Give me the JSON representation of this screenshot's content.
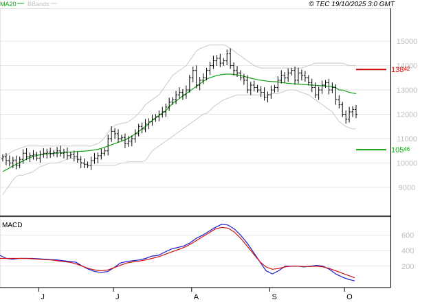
{
  "header": {
    "legend_ma20": "MA20",
    "legend_bbands": "BBands",
    "copyright": "© TEC 19/10/2025 3:0 GMT"
  },
  "colors": {
    "ma20": "#10a010",
    "bbands": "#c8c8c8",
    "price": "#000000",
    "resistance": "#d00000",
    "support": "#10a010",
    "macd": "#1a1ad0",
    "signal": "#d01010",
    "grid": "#e4e4e4",
    "axis_text": "#bdbdbd"
  },
  "chart_data": [
    {
      "type": "ohlc",
      "panel": "price",
      "ylim": [
        7900,
        16300
      ],
      "y_ticks": [
        9000,
        10000,
        11000,
        12000,
        13000,
        14000,
        15000
      ],
      "y_tick_labels": [
        "9000",
        "10000",
        "11000",
        "12000",
        "13000",
        "14000",
        "15000"
      ],
      "x_month_labels": [
        {
          "index": 11,
          "label": "J"
        },
        {
          "index": 33,
          "label": "J"
        },
        {
          "index": 56,
          "label": "A"
        },
        {
          "index": 79,
          "label": "S"
        },
        {
          "index": 101,
          "label": "O"
        }
      ],
      "close": [
        10250,
        10100,
        10000,
        10120,
        9900,
        10150,
        10400,
        10250,
        10300,
        10350,
        10200,
        10350,
        10400,
        10450,
        10380,
        10420,
        10500,
        10400,
        10450,
        10300,
        10350,
        10250,
        10150,
        10000,
        9950,
        9900,
        10100,
        10200,
        10300,
        10400,
        10500,
        11000,
        11300,
        11200,
        11000,
        11050,
        10800,
        10900,
        11000,
        11200,
        11500,
        11400,
        11600,
        11700,
        11800,
        11900,
        12000,
        12100,
        12300,
        12500,
        12600,
        12800,
        12900,
        12800,
        13000,
        13500,
        13800,
        13200,
        13400,
        13500,
        13800,
        14000,
        14200,
        14300,
        14100,
        14200,
        14500,
        14000,
        13800,
        13700,
        13500,
        13400,
        13000,
        13200,
        13100,
        13000,
        12900,
        12700,
        12800,
        13000,
        13100,
        13400,
        13600,
        13500,
        13700,
        13800,
        13400,
        13700,
        13600,
        13500,
        13300,
        13100,
        12800,
        13000,
        13200,
        13300,
        13000,
        13100,
        12600,
        12400,
        12000,
        11800,
        12100,
        12200,
        12000
      ],
      "ma20": [
        9650,
        9720,
        9800,
        9880,
        9950,
        10020,
        10090,
        10160,
        10220,
        10270,
        10310,
        10340,
        10360,
        10380,
        10390,
        10400,
        10410,
        10420,
        10430,
        10440,
        10450,
        10460,
        10470,
        10480,
        10490,
        10500,
        10520,
        10540,
        10560,
        10600,
        10650,
        10700,
        10750,
        10800,
        10850,
        10900,
        10950,
        11020,
        11100,
        11200,
        11300,
        11400,
        11500,
        11620,
        11750,
        11850,
        11950,
        12050,
        12150,
        12300,
        12450,
        12550,
        12650,
        12750,
        12850,
        12950,
        13050,
        13150,
        13250,
        13350,
        13450,
        13500,
        13550,
        13600,
        13620,
        13640,
        13650,
        13650,
        13640,
        13620,
        13590,
        13560,
        13520,
        13480,
        13450,
        13420,
        13400,
        13380,
        13360,
        13350,
        13340,
        13330,
        13310,
        13290,
        13270,
        13260,
        13250,
        13240,
        13230,
        13220,
        13210,
        13200,
        13190,
        13180,
        13170,
        13160,
        13150,
        13140,
        13100,
        13000,
        13000,
        12950,
        12900,
        12870,
        12850
      ],
      "bb_upper": [
        10200,
        10300,
        10400,
        10500,
        10550,
        10600,
        10650,
        10700,
        10700,
        10700,
        10700,
        10700,
        10700,
        10700,
        10700,
        10700,
        10700,
        10700,
        10700,
        10700,
        10700,
        10700,
        10700,
        10700,
        10700,
        10700,
        10700,
        10750,
        10800,
        10900,
        11050,
        11250,
        11450,
        11550,
        11600,
        11620,
        11650,
        11700,
        11800,
        11900,
        12050,
        12200,
        12400,
        12500,
        12600,
        12700,
        12800,
        13000,
        13200,
        13400,
        13600,
        13700,
        13800,
        13900,
        14000,
        14200,
        14400,
        14600,
        14700,
        14750,
        14800,
        14850,
        14850,
        14850,
        14850,
        14850,
        14800,
        14700,
        14600,
        14500,
        14400,
        14300,
        14200,
        14100,
        14000,
        13950,
        13900,
        13900,
        13900,
        13900,
        13900,
        13900,
        13900,
        13900,
        13900,
        13900,
        13900,
        13900,
        13900,
        13950,
        14000,
        14050,
        14100,
        14100,
        14100,
        14100,
        14100,
        14100,
        14100,
        14100,
        14100,
        14050,
        14000,
        14000,
        14000
      ],
      "bb_lower": [
        8700,
        8900,
        9100,
        9300,
        9450,
        9500,
        9500,
        9550,
        9600,
        9650,
        9750,
        9850,
        9900,
        9950,
        10000,
        10000,
        10000,
        10050,
        10100,
        10150,
        10200,
        10200,
        10150,
        10050,
        9950,
        9900,
        9900,
        9900,
        9900,
        9900,
        9900,
        9900,
        9900,
        9900,
        9950,
        10000,
        10000,
        10050,
        10050,
        10050,
        10050,
        10050,
        10100,
        10300,
        10500,
        10600,
        10700,
        10800,
        10900,
        11000,
        11100,
        11200,
        11300,
        11400,
        11500,
        11600,
        11700,
        11800,
        11900,
        12000,
        12050,
        12150,
        12300,
        12400,
        12500,
        12600,
        12650,
        12700,
        12750,
        12800,
        12800,
        12800,
        12800,
        12800,
        12800,
        12800,
        12800,
        12800,
        12800,
        12850,
        12850,
        12850,
        12900,
        12950,
        13000,
        13000,
        13000,
        12950,
        12900,
        12850,
        12800,
        12700,
        12600,
        12500,
        12400,
        12300,
        12200,
        12100,
        11900,
        11700,
        11600,
        11500,
        11450,
        11400,
        11400
      ],
      "levels": [
        {
          "name": "resistance",
          "value": 13842,
          "label": "138",
          "label_suffix": "42"
        },
        {
          "name": "support",
          "value": 10546,
          "label": "105",
          "label_suffix": "46"
        }
      ]
    },
    {
      "type": "line",
      "panel": "macd",
      "title": "MACD",
      "ylim": [
        -50,
        800
      ],
      "y_ticks": [
        200,
        400,
        600
      ],
      "y_tick_labels": [
        "200",
        "400",
        "600"
      ],
      "series": [
        {
          "name": "MACD",
          "values": [
            340,
            300,
            290,
            300,
            300,
            300,
            295,
            290,
            285,
            280,
            270,
            260,
            250,
            200,
            160,
            130,
            120,
            130,
            180,
            240,
            260,
            270,
            280,
            300,
            330,
            340,
            380,
            420,
            440,
            460,
            500,
            560,
            600,
            650,
            700,
            740,
            730,
            680,
            600,
            500,
            380,
            260,
            140,
            100,
            140,
            200,
            200,
            200,
            190,
            200,
            210,
            200,
            160,
            100,
            60,
            30,
            10
          ]
        },
        {
          "name": "Signal",
          "values": [
            300,
            300,
            300,
            300,
            300,
            295,
            290,
            285,
            280,
            270,
            260,
            250,
            230,
            200,
            170,
            150,
            140,
            150,
            180,
            210,
            240,
            255,
            265,
            280,
            300,
            320,
            350,
            380,
            410,
            440,
            480,
            530,
            580,
            630,
            680,
            700,
            690,
            640,
            560,
            460,
            360,
            260,
            190,
            160,
            170,
            190,
            200,
            200,
            195,
            195,
            200,
            190,
            170,
            140,
            110,
            80,
            50
          ]
        }
      ]
    }
  ]
}
